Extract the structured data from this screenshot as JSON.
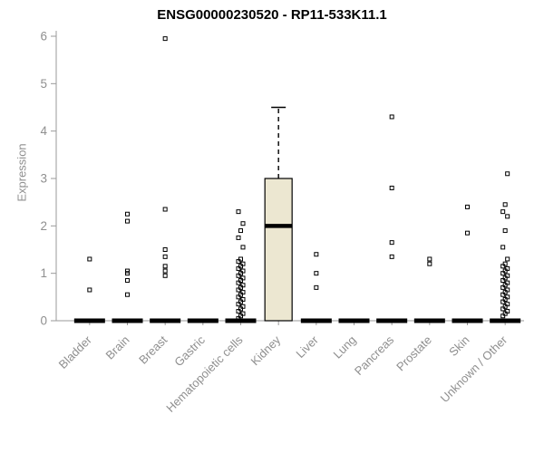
{
  "chart_data": {
    "type": "boxplot",
    "title": "ENSG00000230520 - RP11-533K11.1",
    "ylabel": "Expression",
    "ylim": [
      0,
      6
    ],
    "yticks": [
      0,
      1,
      2,
      3,
      4,
      5,
      6
    ],
    "grid": false,
    "legend": "none",
    "categories": [
      "Bladder",
      "Brain",
      "Breast",
      "Gastric",
      "Hematopoietic cells",
      "Kidney",
      "Liver",
      "Lung",
      "Pancreas",
      "Prostate",
      "Skin",
      "Unknown / Other"
    ],
    "colors": {
      "box_fill": "#ece7d1",
      "box_stroke": "#000000",
      "median": "#000000",
      "axis": "#9a9a9a",
      "labels": "#8f8f8f",
      "outlier": "#000000",
      "background": "#ffffff"
    },
    "boxes": [
      {
        "category": "Bladder",
        "q1": 0,
        "median": 0,
        "q3": 0,
        "whisker_low": 0,
        "whisker_high": 0,
        "outliers": [
          0.65,
          1.3
        ]
      },
      {
        "category": "Brain",
        "q1": 0,
        "median": 0,
        "q3": 0,
        "whisker_low": 0,
        "whisker_high": 0,
        "outliers": [
          0.55,
          0.85,
          1.0,
          1.05,
          2.1,
          2.25
        ]
      },
      {
        "category": "Breast",
        "q1": 0,
        "median": 0,
        "q3": 0,
        "whisker_low": 0,
        "whisker_high": 0,
        "outliers": [
          0.95,
          1.05,
          1.15,
          1.35,
          1.5,
          2.35,
          5.95
        ]
      },
      {
        "category": "Gastric",
        "q1": 0,
        "median": 0,
        "q3": 0,
        "whisker_low": 0,
        "whisker_high": 0,
        "outliers": []
      },
      {
        "category": "Hematopoietic cells",
        "q1": 0,
        "median": 0,
        "q3": 0,
        "whisker_low": 0,
        "whisker_high": 0,
        "outliers": [
          0.05,
          0.1,
          0.15,
          0.2,
          0.25,
          0.3,
          0.35,
          0.4,
          0.45,
          0.5,
          0.55,
          0.6,
          0.65,
          0.7,
          0.75,
          0.8,
          0.85,
          0.9,
          0.95,
          1.0,
          1.05,
          1.1,
          1.15,
          1.2,
          1.25,
          1.3,
          1.55,
          1.75,
          1.9,
          2.05,
          2.3
        ]
      },
      {
        "category": "Kidney",
        "q1": 0,
        "median": 2,
        "q3": 3,
        "whisker_low": 0,
        "whisker_high": 4.5,
        "outliers": []
      },
      {
        "category": "Liver",
        "q1": 0,
        "median": 0,
        "q3": 0,
        "whisker_low": 0,
        "whisker_high": 0,
        "outliers": [
          0.7,
          1.0,
          1.4
        ]
      },
      {
        "category": "Lung",
        "q1": 0,
        "median": 0,
        "q3": 0,
        "whisker_low": 0,
        "whisker_high": 0,
        "outliers": []
      },
      {
        "category": "Pancreas",
        "q1": 0,
        "median": 0,
        "q3": 0,
        "whisker_low": 0,
        "whisker_high": 0,
        "outliers": [
          1.35,
          1.65,
          2.8,
          4.3
        ]
      },
      {
        "category": "Prostate",
        "q1": 0,
        "median": 0,
        "q3": 0,
        "whisker_low": 0,
        "whisker_high": 0,
        "outliers": [
          1.2,
          1.3
        ]
      },
      {
        "category": "Skin",
        "q1": 0,
        "median": 0,
        "q3": 0,
        "whisker_low": 0,
        "whisker_high": 0,
        "outliers": [
          1.85,
          2.4
        ]
      },
      {
        "category": "Unknown / Other",
        "q1": 0,
        "median": 0,
        "q3": 0,
        "whisker_low": 0,
        "whisker_high": 0,
        "outliers": [
          0.1,
          0.15,
          0.2,
          0.25,
          0.3,
          0.35,
          0.4,
          0.45,
          0.5,
          0.55,
          0.6,
          0.65,
          0.7,
          0.75,
          0.8,
          0.85,
          0.9,
          0.95,
          1.0,
          1.05,
          1.1,
          1.15,
          1.2,
          1.3,
          1.55,
          1.9,
          2.2,
          2.3,
          2.45,
          3.1
        ]
      }
    ]
  }
}
